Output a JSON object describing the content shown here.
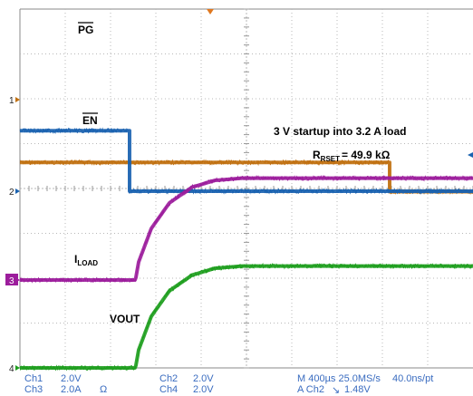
{
  "colors": {
    "ch1": "#c07010",
    "ch2": "#1a62b0",
    "ch3": "#9c1d9c",
    "ch4": "#1e9e1e",
    "grid": "#b8b8b8",
    "status_text": "#3a6cc0"
  },
  "chart_data": {
    "type": "line",
    "title": "3 V startup into 3.2 A load",
    "subtitle_main": "R",
    "subtitle_sub": "RSET",
    "subtitle_rest": "= 49.9 kΩ",
    "x_divisions": 10,
    "y_divisions": 8,
    "time_per_div_us": 400,
    "series": [
      {
        "id": "ch1",
        "label_text": "PG",
        "overline": true,
        "points": [
          [
            0,
            -1.4
          ],
          [
            8.15,
            -1.4
          ],
          [
            8.15,
            -2.05
          ],
          [
            10,
            -2.05
          ]
        ]
      },
      {
        "id": "ch2",
        "label_text": "EN",
        "overline": true,
        "points": [
          [
            0,
            1.35
          ],
          [
            2.4,
            1.35
          ],
          [
            2.4,
            0
          ],
          [
            10,
            0
          ]
        ]
      },
      {
        "id": "ch3",
        "label_prefix": "I",
        "label_sub": "LOAD",
        "points": [
          [
            0,
            0
          ],
          [
            2.55,
            0
          ],
          [
            2.62,
            0.4
          ],
          [
            2.9,
            1.15
          ],
          [
            3.3,
            1.72
          ],
          [
            3.8,
            2.07
          ],
          [
            4.3,
            2.22
          ],
          [
            4.9,
            2.27
          ],
          [
            10,
            2.27
          ]
        ]
      },
      {
        "id": "ch4",
        "label_text": "VOUT",
        "points": [
          [
            0,
            0
          ],
          [
            2.55,
            0
          ],
          [
            2.62,
            0.4
          ],
          [
            2.9,
            1.15
          ],
          [
            3.3,
            1.72
          ],
          [
            3.8,
            2.07
          ],
          [
            4.3,
            2.22
          ],
          [
            4.9,
            2.27
          ],
          [
            10,
            2.27
          ]
        ]
      }
    ],
    "markers": [
      "1",
      "2",
      "3",
      "4"
    ]
  },
  "status": {
    "ch1_name": "Ch1",
    "ch1_scale": "2.0V",
    "ch2_name": "Ch2",
    "ch2_scale": "2.0V",
    "ch3_name": "Ch3",
    "ch3_scale": "2.0A",
    "ch3_unit": "Ω",
    "ch4_name": "Ch4",
    "ch4_scale": "2.0V",
    "timebase": "M 400µs 25.0MS/s",
    "record": "40.0ns/pt",
    "trigger_prefix": "A  Ch2",
    "trigger_symbol": "↘",
    "trigger_level": "1.48V"
  }
}
